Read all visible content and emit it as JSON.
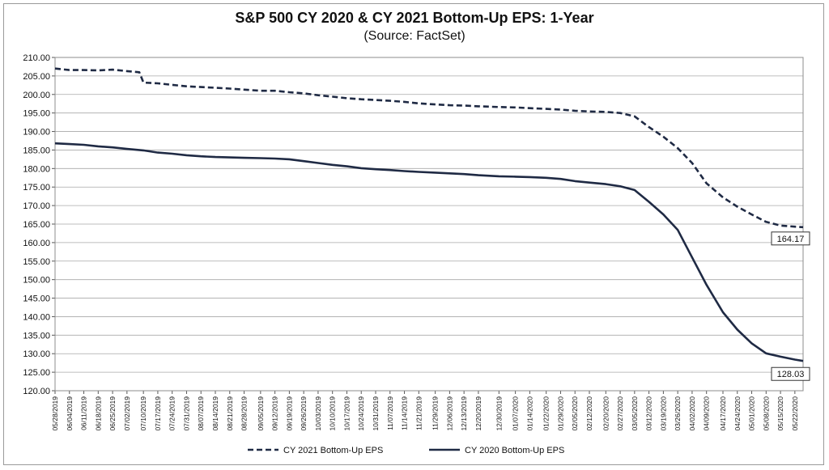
{
  "chart_data": {
    "type": "line",
    "title": "S&P 500 CY 2020 & CY 2021 Bottom-Up EPS: 1-Year",
    "subtitle": "(Source: FactSet)",
    "xlabel": "",
    "ylabel": "",
    "ylim": [
      120,
      210
    ],
    "y_ticks": [
      "120.00",
      "125.00",
      "130.00",
      "135.00",
      "140.00",
      "145.00",
      "150.00",
      "155.00",
      "160.00",
      "165.00",
      "170.00",
      "175.00",
      "180.00",
      "185.00",
      "190.00",
      "195.00",
      "200.00",
      "205.00",
      "210.00"
    ],
    "x_ticks": [
      "05/28/2019",
      "06/04/2019",
      "06/11/2019",
      "06/18/2019",
      "06/25/2019",
      "07/02/2019",
      "07/10/2019",
      "07/17/2019",
      "07/24/2019",
      "07/31/2019",
      "08/07/2019",
      "08/14/2019",
      "08/21/2019",
      "08/28/2019",
      "09/05/2019",
      "09/12/2019",
      "09/19/2019",
      "09/26/2019",
      "10/03/2019",
      "10/10/2019",
      "10/17/2019",
      "10/24/2019",
      "10/31/2019",
      "11/07/2019",
      "11/14/2019",
      "11/21/2019",
      "11/29/2019",
      "12/06/2019",
      "12/13/2019",
      "12/20/2019",
      "12/30/2019",
      "01/07/2020",
      "01/14/2020",
      "01/22/2020",
      "01/29/2020",
      "02/05/2020",
      "02/12/2020",
      "02/20/2020",
      "02/27/2020",
      "03/05/2020",
      "03/12/2020",
      "03/19/2020",
      "03/26/2020",
      "04/02/2020",
      "04/09/2020",
      "04/17/2020",
      "04/24/2020",
      "05/01/2020",
      "05/08/2020",
      "05/15/2020",
      "05/22/2020"
    ],
    "grid": true,
    "legend_position": "bottom",
    "series": [
      {
        "name": "CY 2021 Bottom-Up EPS",
        "style": "dashed",
        "color": "#1f2a44",
        "end_label": "164.17",
        "points": [
          [
            "05/28/2019",
            207.0
          ],
          [
            "06/04/2019",
            206.6
          ],
          [
            "06/11/2019",
            206.6
          ],
          [
            "06/18/2019",
            206.5
          ],
          [
            "06/25/2019",
            206.7
          ],
          [
            "07/02/2019",
            206.3
          ],
          [
            "07/08/2019",
            206.0
          ],
          [
            "07/10/2019",
            203.2
          ],
          [
            "07/17/2019",
            203.0
          ],
          [
            "07/24/2019",
            202.6
          ],
          [
            "07/31/2019",
            202.2
          ],
          [
            "08/07/2019",
            202.0
          ],
          [
            "08/14/2019",
            201.8
          ],
          [
            "08/21/2019",
            201.6
          ],
          [
            "08/28/2019",
            201.3
          ],
          [
            "09/05/2019",
            201.0
          ],
          [
            "09/12/2019",
            201.0
          ],
          [
            "09/19/2019",
            200.6
          ],
          [
            "09/26/2019",
            200.3
          ],
          [
            "10/03/2019",
            199.8
          ],
          [
            "10/10/2019",
            199.4
          ],
          [
            "10/17/2019",
            199.0
          ],
          [
            "10/24/2019",
            198.7
          ],
          [
            "10/31/2019",
            198.5
          ],
          [
            "11/07/2019",
            198.3
          ],
          [
            "11/14/2019",
            198.0
          ],
          [
            "11/21/2019",
            197.6
          ],
          [
            "11/29/2019",
            197.3
          ],
          [
            "12/06/2019",
            197.1
          ],
          [
            "12/13/2019",
            197.0
          ],
          [
            "12/20/2019",
            196.8
          ],
          [
            "12/30/2019",
            196.6
          ],
          [
            "01/07/2020",
            196.5
          ],
          [
            "01/14/2020",
            196.3
          ],
          [
            "01/22/2020",
            196.1
          ],
          [
            "01/29/2020",
            195.9
          ],
          [
            "02/05/2020",
            195.6
          ],
          [
            "02/12/2020",
            195.4
          ],
          [
            "02/20/2020",
            195.3
          ],
          [
            "02/27/2020",
            195.0
          ],
          [
            "03/05/2020",
            194.1
          ],
          [
            "03/12/2020",
            191.2
          ],
          [
            "03/19/2020",
            188.6
          ],
          [
            "03/26/2020",
            185.5
          ],
          [
            "04/02/2020",
            181.5
          ],
          [
            "04/09/2020",
            176.0
          ],
          [
            "04/17/2020",
            172.2
          ],
          [
            "04/24/2020",
            169.7
          ],
          [
            "05/01/2020",
            167.6
          ],
          [
            "05/08/2020",
            165.6
          ],
          [
            "05/15/2020",
            164.6
          ],
          [
            "05/22/2020",
            164.3
          ],
          [
            "05/26/2020",
            164.17
          ]
        ]
      },
      {
        "name": "CY 2020 Bottom-Up EPS",
        "style": "solid",
        "color": "#1f2a44",
        "end_label": "128.03",
        "points": [
          [
            "05/28/2019",
            186.8
          ],
          [
            "06/04/2019",
            186.6
          ],
          [
            "06/11/2019",
            186.4
          ],
          [
            "06/18/2019",
            186.0
          ],
          [
            "06/25/2019",
            185.7
          ],
          [
            "07/02/2019",
            185.3
          ],
          [
            "07/10/2019",
            184.9
          ],
          [
            "07/17/2019",
            184.3
          ],
          [
            "07/24/2019",
            184.0
          ],
          [
            "07/31/2019",
            183.6
          ],
          [
            "08/07/2019",
            183.3
          ],
          [
            "08/14/2019",
            183.1
          ],
          [
            "08/21/2019",
            183.0
          ],
          [
            "08/28/2019",
            182.9
          ],
          [
            "09/05/2019",
            182.8
          ],
          [
            "09/12/2019",
            182.7
          ],
          [
            "09/19/2019",
            182.5
          ],
          [
            "09/26/2019",
            182.0
          ],
          [
            "10/03/2019",
            181.5
          ],
          [
            "10/10/2019",
            181.0
          ],
          [
            "10/17/2019",
            180.6
          ],
          [
            "10/24/2019",
            180.1
          ],
          [
            "10/31/2019",
            179.8
          ],
          [
            "11/07/2019",
            179.6
          ],
          [
            "11/14/2019",
            179.3
          ],
          [
            "11/21/2019",
            179.1
          ],
          [
            "11/29/2019",
            178.9
          ],
          [
            "12/06/2019",
            178.7
          ],
          [
            "12/13/2019",
            178.5
          ],
          [
            "12/20/2019",
            178.2
          ],
          [
            "12/30/2019",
            177.9
          ],
          [
            "01/07/2020",
            177.8
          ],
          [
            "01/14/2020",
            177.7
          ],
          [
            "01/22/2020",
            177.5
          ],
          [
            "01/29/2020",
            177.2
          ],
          [
            "02/05/2020",
            176.6
          ],
          [
            "02/12/2020",
            176.2
          ],
          [
            "02/20/2020",
            175.8
          ],
          [
            "02/27/2020",
            175.2
          ],
          [
            "03/05/2020",
            174.2
          ],
          [
            "03/12/2020",
            171.0
          ],
          [
            "03/19/2020",
            167.6
          ],
          [
            "03/26/2020",
            163.4
          ],
          [
            "04/02/2020",
            156.0
          ],
          [
            "04/09/2020",
            148.6
          ],
          [
            "04/17/2020",
            141.2
          ],
          [
            "04/24/2020",
            136.5
          ],
          [
            "05/01/2020",
            132.8
          ],
          [
            "05/08/2020",
            130.1
          ],
          [
            "05/15/2020",
            129.2
          ],
          [
            "05/22/2020",
            128.4
          ],
          [
            "05/26/2020",
            128.03
          ]
        ]
      }
    ]
  }
}
